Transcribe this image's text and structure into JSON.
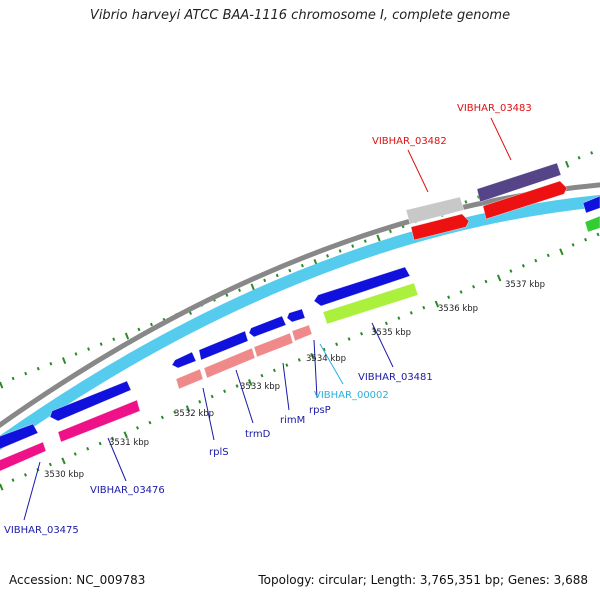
{
  "title": "Vibrio harveyi ATCC BAA-1116 chromosome I, complete genome",
  "footer": {
    "accession": "Accession: NC_009783",
    "topology": "Topology: circular; Length: 3,765,351 bp; Genes: 3,688"
  },
  "ticks": [
    "3530 kbp",
    "3531 kbp",
    "3532 kbp",
    "3533 kbp",
    "3534 kbp",
    "3535 kbp",
    "3536 kbp",
    "3537 kbp"
  ],
  "gene_labels": [
    {
      "name": "VIBHAR_03475",
      "color": "#1a1aa8"
    },
    {
      "name": "VIBHAR_03476",
      "color": "#1a1aa8"
    },
    {
      "name": "rplS",
      "color": "#1a1aa8"
    },
    {
      "name": "trmD",
      "color": "#1a1aa8"
    },
    {
      "name": "rimM",
      "color": "#1a1aa8"
    },
    {
      "name": "rpsP",
      "color": "#1a1aa8"
    },
    {
      "name": "VIBHAR_00002",
      "color": "#2ab0e0"
    },
    {
      "name": "VIBHAR_03481",
      "color": "#1a1aa8"
    },
    {
      "name": "VIBHAR_03482",
      "color": "#e01010"
    },
    {
      "name": "VIBHAR_03483",
      "color": "#e01010"
    }
  ],
  "colors": {
    "backbone": "#888888",
    "cds_track": "#55ccee",
    "cds": "#1111dd",
    "trna": "#ee1188",
    "rrna_pink": "#f08a8a",
    "lime": "#aaf03c",
    "grey_feature": "#c8c8c8",
    "red_feature": "#ee1111",
    "purple_feature": "#554488",
    "green_feature": "#33cc33",
    "gc_dots": "#2a8a2a"
  }
}
